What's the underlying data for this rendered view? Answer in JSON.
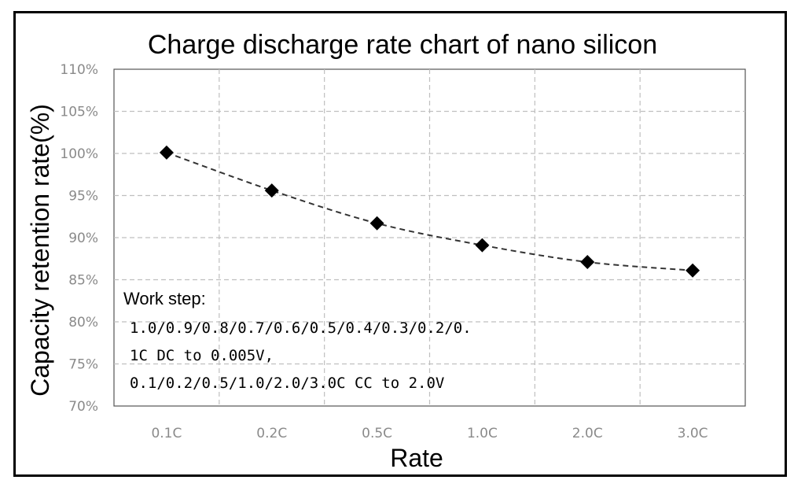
{
  "chart_data": {
    "type": "line",
    "title": "Charge discharge rate chart of nano silicon",
    "xlabel": "Rate",
    "ylabel": "Capacity retention rate(%)",
    "categories": [
      "0.1C",
      "0.2C",
      "0.5C",
      "1.0C",
      "2.0C",
      "3.0C"
    ],
    "series": [
      {
        "name": "Capacity retention",
        "values": [
          100.1,
          95.6,
          91.7,
          89.1,
          87.1,
          86.1
        ]
      }
    ],
    "ylim": [
      70,
      110
    ],
    "yticks": [
      70,
      75,
      80,
      85,
      90,
      95,
      100,
      105,
      110
    ],
    "ytick_labels": [
      "70%",
      "75%",
      "80%",
      "85%",
      "90%",
      "95%",
      "100%",
      "105%",
      "110%"
    ],
    "grid": true,
    "line_style": "dashed",
    "marker": "diamond",
    "colors": {
      "line": "#333333",
      "marker": "#000000",
      "grid": "#bfbfbf",
      "tick": "#8a8a8a"
    },
    "annotation": {
      "heading": "Work step:",
      "lines": [
        "1.0/0.9/0.8/0.7/0.6/0.5/0.4/0.3/0.2/0.",
        "1C DC to 0.005V,",
        "0.1/0.2/0.5/1.0/2.0/3.0C CC to 2.0V"
      ]
    }
  }
}
